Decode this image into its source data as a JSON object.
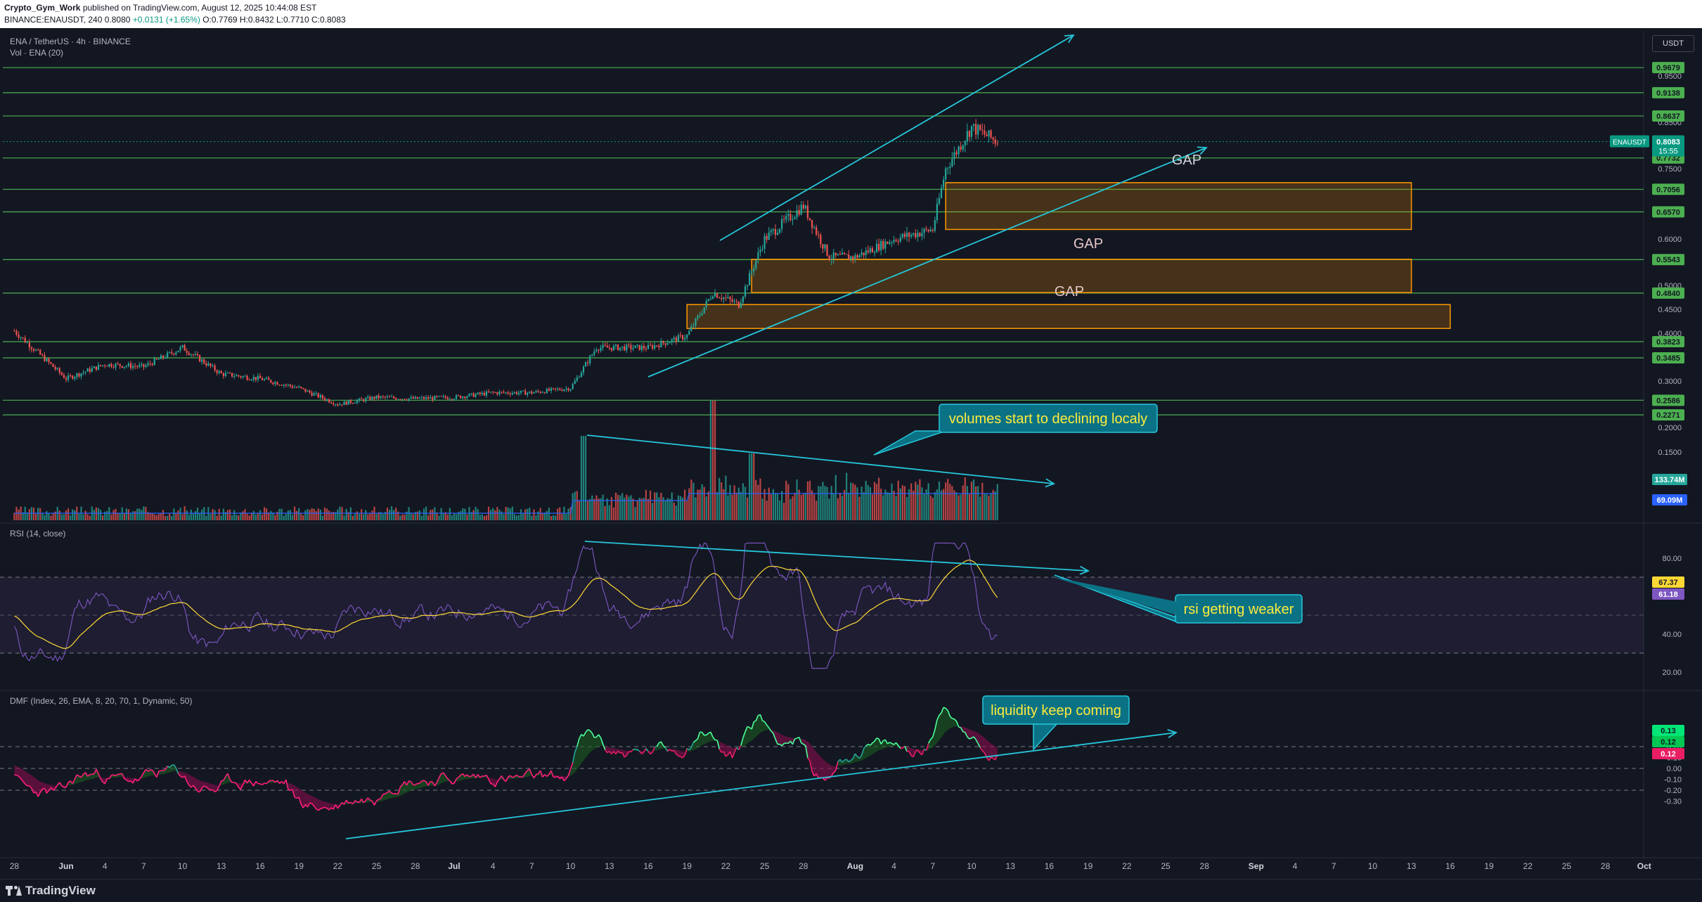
{
  "header": {
    "publisher": "Crypto_Gym_Work",
    "published_text": "published on TradingView.com, August 12, 2025 10:44:08 EST",
    "symbol_line_prefix": "BINANCE:ENAUSDT, 240",
    "last": "0.8080",
    "change": "+0.0131 (+1.65%)",
    "ohlc": "O:0.7769 H:0.8432 L:0.7710 C:0.8083"
  },
  "main_panel": {
    "title": "ENA / TetherUS · 4h · BINANCE",
    "volume_label": "Vol · ENA (20)",
    "currency_button": "USDT"
  },
  "rsi_panel": {
    "label": "RSI (14, close)"
  },
  "dmf_panel": {
    "label": "DMF (Index, 26, EMA, 8, 20, 70, 1, Dynamic, 50)"
  },
  "footer": {
    "brand": "TradingView"
  },
  "chart_data": {
    "type": "candlestick",
    "symbol": "ENAUSDT",
    "timeframe": "4h",
    "x_axis_labels": [
      "28",
      "Jun",
      "4",
      "7",
      "10",
      "13",
      "16",
      "19",
      "22",
      "25",
      "28",
      "Jul",
      "4",
      "7",
      "10",
      "13",
      "16",
      "19",
      "22",
      "25",
      "28",
      "Aug",
      "4",
      "7",
      "10",
      "13",
      "16",
      "19",
      "22",
      "25",
      "28",
      "Sep",
      "4",
      "7",
      "10",
      "13",
      "16",
      "19",
      "22",
      "25",
      "28",
      "Oct"
    ],
    "price_axis_ticks": [
      "0.9500",
      "0.8500",
      "0.7500",
      "0.6000",
      "0.5500",
      "0.5000",
      "0.4500",
      "0.4000",
      "0.3000",
      "0.2000",
      "0.1500",
      "0.1000"
    ],
    "horizontal_levels": [
      "0.9679",
      "0.9138",
      "0.8637",
      "0.7732",
      "0.7056",
      "0.6570",
      "0.5543",
      "0.4840",
      "0.3823",
      "0.3485",
      "0.2586",
      "0.2271"
    ],
    "level_color": "#4caf50",
    "current_price": {
      "label": "ENAUSDT",
      "value": "0.8083",
      "countdown": "15:55",
      "color": "#089981"
    },
    "volume_labels": {
      "volume": "133.74M",
      "volume_ma": "69.09M"
    },
    "price_series_approx": [
      [
        "May 28",
        0.405
      ],
      [
        "Jun 1",
        0.305
      ],
      [
        "Jun 4",
        0.335
      ],
      [
        "Jun 7",
        0.33
      ],
      [
        "Jun 10",
        0.37
      ],
      [
        "Jun 13",
        0.315
      ],
      [
        "Jun 16",
        0.305
      ],
      [
        "Jun 19",
        0.285
      ],
      [
        "Jun 22",
        0.25
      ],
      [
        "Jun 25",
        0.265
      ],
      [
        "Jun 28",
        0.262
      ],
      [
        "Jul 1",
        0.265
      ],
      [
        "Jul 4",
        0.275
      ],
      [
        "Jul 7",
        0.275
      ],
      [
        "Jul 10",
        0.285
      ],
      [
        "Jul 12",
        0.37
      ],
      [
        "Jul 16",
        0.37
      ],
      [
        "Jul 19",
        0.395
      ],
      [
        "Jul 21",
        0.485
      ],
      [
        "Jul 23",
        0.46
      ],
      [
        "Jul 25",
        0.6
      ],
      [
        "Jul 28",
        0.67
      ],
      [
        "Jul 30",
        0.56
      ],
      [
        "Aug 1",
        0.56
      ],
      [
        "Aug 4",
        0.6
      ],
      [
        "Aug 7",
        0.62
      ],
      [
        "Aug 8",
        0.75
      ],
      [
        "Aug 10",
        0.84
      ],
      [
        "Aug 12",
        0.808
      ]
    ],
    "rsi": {
      "axis_ticks": [
        "80.00",
        "40.00",
        "20.00"
      ],
      "labels": [
        "67.37",
        "61.18"
      ],
      "upper_band": 70,
      "middle_band": 50,
      "lower_band": 30
    },
    "dmf": {
      "axis_ticks": [
        "0.20",
        "0.10",
        "0.00",
        "-0.10",
        "-0.20",
        "-0.30"
      ],
      "labels": [
        "0.13",
        "0.12",
        "0.12"
      ]
    },
    "annotations": [
      "GAP",
      "GAP",
      "GAP",
      "volumes start to declining localy",
      "rsi getting weaker",
      "liquidity keep coming"
    ],
    "annotation_color": "#26c6da",
    "gap_zone_color": "#ff9800"
  }
}
